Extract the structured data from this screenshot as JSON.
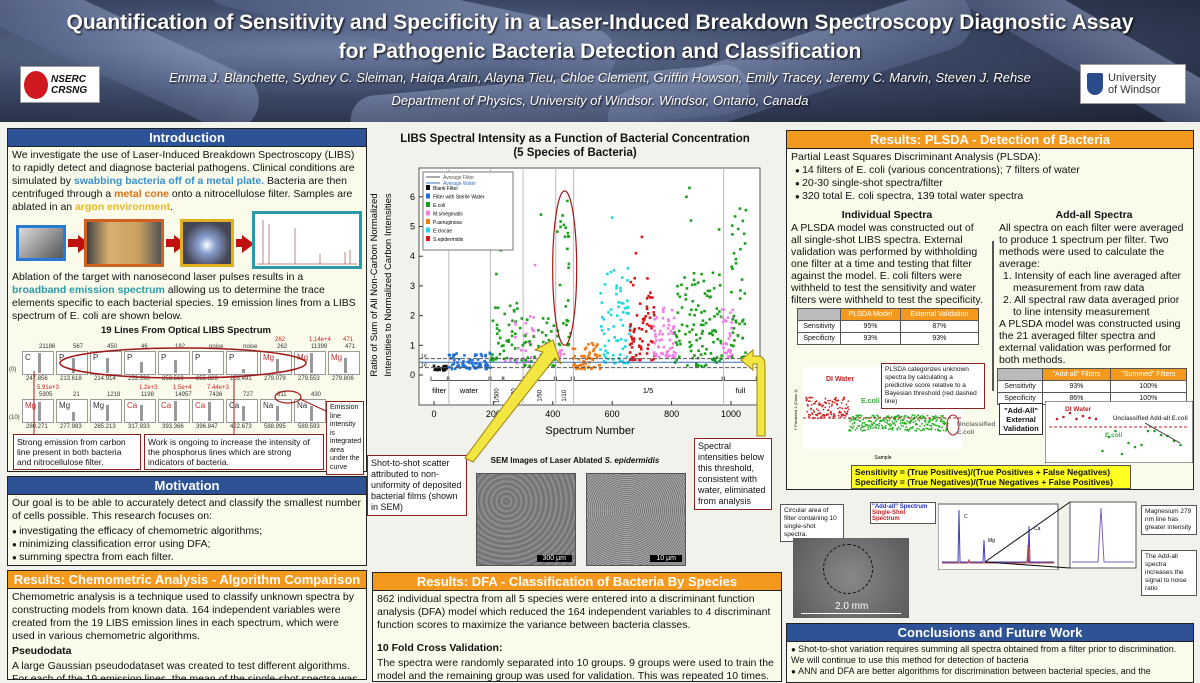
{
  "header": {
    "title": "Quantification of Sensitivity and Specificity in a Laser-Induced Breakdown Spectroscopy Diagnostic Assay for Pathogenic Bacteria Detection and Classification",
    "authors": "Emma J. Blanchette, Sydney C. Sleiman, Haiqa Arain, Alayna Tieu, Chloe Clement, Griffin Howson, Emily Tracey, Jeremy C. Marvin, Steven J. Rehse",
    "department": "Department of Physics, University of Windsor. Windsor, Ontario, Canada",
    "nserc_logo": [
      "NSERC",
      "CRSNG"
    ],
    "uw_logo": [
      "University",
      "of Windsor"
    ]
  },
  "intro": {
    "heading": "Introduction",
    "p1": [
      "We investigate the use of Laser-Induced Breakdown Spectroscopy (LIBS) to rapidly detect and diagnose bacterial pathogens. Clinical conditions are simulated by ",
      "swabbing bacteria off of a metal plate.",
      " Bacteria are then centrifuged through a ",
      "metal cone",
      " onto a nitrocellulose filter. Samples are ablated in an ",
      "argon environment",
      "."
    ],
    "p2": [
      "Ablation of the target with nanosecond laser pulses results in a ",
      "broadband emission spectrum",
      " allowing us to determine the trace elements specific to each bacterial species. 19 emission lines from a LIBS spectrum of E. coli are shown below."
    ],
    "lines_title": "19 Lines From Optical LIBS Spectrum",
    "lines": [
      {
        "el": "C",
        "wl": "247.856",
        "val": "21186"
      },
      {
        "el": "P",
        "wl": "213.618",
        "val": "567"
      },
      {
        "el": "P",
        "wl": "214.914",
        "val": "450"
      },
      {
        "el": "P",
        "wl": "253.398",
        "val": "46"
      },
      {
        "el": "P",
        "wl": "253.560",
        "val": "182"
      },
      {
        "el": "P",
        "wl": "255.326",
        "val": "noise"
      },
      {
        "el": "P",
        "wl": "255.491",
        "val": "noise"
      },
      {
        "el": "Mg",
        "wl": "279.079",
        "val": "262",
        "red": "262"
      },
      {
        "el": "Mg",
        "wl": "279.553",
        "val": "11399",
        "red": "1.14e+4"
      },
      {
        "el": "Mg",
        "wl": "279.806",
        "val": "471",
        "red": "471"
      },
      {
        "el": "Mg",
        "wl": "280.271",
        "val": "5905",
        "red": "5.91e+3"
      },
      {
        "el": "Mg",
        "wl": "277.983",
        "val": "21"
      },
      {
        "el": "Mg",
        "wl": "285.213",
        "val": "1218"
      },
      {
        "el": "Ca",
        "wl": "317.933",
        "val": "1198",
        "red": "1.2e+3"
      },
      {
        "el": "Ca",
        "wl": "393.366",
        "val": "14957",
        "red": "1.5e+4"
      },
      {
        "el": "Ca",
        "wl": "396.847",
        "val": "7436",
        "red": "7.44e+3"
      },
      {
        "el": "Ca",
        "wl": "422.673",
        "val": "727"
      },
      {
        "el": "Na",
        "wl": "588.995",
        "val": "611"
      },
      {
        "el": "Na",
        "wl": "589.593",
        "val": "430"
      }
    ],
    "row_labels": [
      "(0)",
      "(10)"
    ],
    "callout_carbon": "Strong emission from carbon line present in both bacteria and nitrocellulose filter.",
    "callout_phos": "Work is ongoing to increase the intensity of the phosphorus lines which are strong indicators of bacteria.",
    "callout_emission": "Emission line intensity is integrated area under the curve"
  },
  "motivation": {
    "heading": "Motivation",
    "text": "Our goal is to be able to accurately detect and classify the smallest number of cells possible. This research focuses on:",
    "bullets": [
      "investigating the efficacy of chemometric algorithms;",
      "minimizing classification error using DFA;",
      "summing spectra from each filter."
    ]
  },
  "chemometric": {
    "heading": "Results: Chemometric Analysis - Algorithm Comparison",
    "text": "Chemometric analysis is a technique used to classify unknown spectra by constructing models from known data. 164 independent variables were created from the 19 LIBS emission lines in each spectrum, which were used in various chemometric algorithms.",
    "sub": "Pseudodata",
    "text2": "A large Gaussian pseudodataset was created to test different algorithms. For each of the 19 emission lines, the mean of the single-shot spectra was"
  },
  "center": {
    "callout_scatter": "Shot-to-shot scatter attributed to non-uniformity of deposited bacterial films (shown in SEM)",
    "callout_threshold": "Spectral intensities below this threshold, consistent with water, eliminated from analysis",
    "sem_title": "SEM Images of Laser Ablated ",
    "sem_species": "S. epidermidis",
    "sem_scales": [
      "300 µm",
      "10 µm"
    ]
  },
  "chart_data": {
    "type": "scatter",
    "title": "LIBS Spectral Intensity as a Function of Bacterial Concentration",
    "subtitle": "(5 Species of Bacteria)",
    "xlabel": "Spectrum Number",
    "ylabel": [
      "Ratio of Sum of All Non-Carbon Normalized",
      "Intensities to Normalized Carbon Intensities"
    ],
    "xlim": [
      -40,
      1090
    ],
    "ylim": [
      -1,
      7
    ],
    "xticks": [
      0,
      200,
      400,
      600,
      800,
      1000
    ],
    "yticks": [
      0,
      1,
      2,
      3,
      4,
      5,
      6
    ],
    "legend_lines": [
      {
        "name": "Average Filter",
        "color": "#555555"
      },
      {
        "name": "Average Water",
        "color": "#3a70c0"
      }
    ],
    "legend": [
      {
        "name": "Blank Filter",
        "color": "#111111"
      },
      {
        "name": "Filter with Sterile Water",
        "color": "#1f6fd6"
      },
      {
        "name": "E.coli",
        "color": "#1aa01a"
      },
      {
        "name": "M.smegmatis",
        "color": "#f080e8"
      },
      {
        "name": "P.aeruginosa",
        "color": "#f07a10"
      },
      {
        "name": "E.clocae",
        "color": "#20d8e0"
      },
      {
        "name": "S.epidermidis",
        "color": "#d81818"
      }
    ],
    "clusters": [
      {
        "s": 1,
        "x": [
          0,
          45
        ],
        "y": [
          0.15,
          0.33
        ],
        "n": 22
      },
      {
        "s": 2,
        "x": [
          50,
          190
        ],
        "y": [
          0.2,
          0.75
        ],
        "n": 70
      },
      {
        "s": 3,
        "x": [
          190,
          300
        ],
        "y": [
          0.5,
          2.5
        ],
        "n": 45
      },
      {
        "s": 4,
        "x": [
          240,
          340
        ],
        "y": [
          0.4,
          2.0
        ],
        "n": 30
      },
      {
        "s": 3,
        "x": [
          300,
          410
        ],
        "y": [
          0.3,
          2.0
        ],
        "n": 45
      },
      {
        "s": 3,
        "x": [
          415,
          460
        ],
        "y": [
          1.0,
          6.1
        ],
        "n": 30
      },
      {
        "s": 4,
        "x": [
          405,
          440
        ],
        "y": [
          0.5,
          1.0
        ],
        "n": 10
      },
      {
        "s": 5,
        "x": [
          465,
          560
        ],
        "y": [
          0.2,
          1.1
        ],
        "n": 60
      },
      {
        "s": 6,
        "x": [
          560,
          660
        ],
        "y": [
          0.4,
          3.6
        ],
        "n": 70
      },
      {
        "s": 7,
        "x": [
          660,
          745
        ],
        "y": [
          0.5,
          3.4
        ],
        "n": 70
      },
      {
        "s": 4,
        "x": [
          740,
          815
        ],
        "y": [
          0.6,
          2.3
        ],
        "n": 60
      },
      {
        "s": 3,
        "x": [
          810,
          970
        ],
        "y": [
          0.3,
          3.5
        ],
        "n": 110
      },
      {
        "s": 4,
        "x": [
          970,
          1010
        ],
        "y": [
          0.6,
          2.3
        ],
        "n": 30
      },
      {
        "s": 3,
        "x": [
          1000,
          1050
        ],
        "y": [
          0.6,
          5.6
        ],
        "n": 40
      }
    ],
    "outliers": [
      {
        "s": 3,
        "x": 225,
        "y": 4.2
      },
      {
        "s": 3,
        "x": 210,
        "y": 3.4
      },
      {
        "s": 3,
        "x": 360,
        "y": 5.4
      },
      {
        "s": 4,
        "x": 340,
        "y": 3.7
      },
      {
        "s": 6,
        "x": 600,
        "y": 5.3
      },
      {
        "s": 7,
        "x": 700,
        "y": 4.65
      },
      {
        "s": 7,
        "x": 680,
        "y": 4.1
      },
      {
        "s": 3,
        "x": 860,
        "y": 6.3
      },
      {
        "s": 3,
        "x": 850,
        "y": 6.0
      },
      {
        "s": 3,
        "x": 865,
        "y": 5.2
      },
      {
        "s": 3,
        "x": 960,
        "y": 4.9
      },
      {
        "s": 3,
        "x": 1030,
        "y": 5.6
      }
    ],
    "thresholds": [
      {
        "label": "1σ",
        "y": 0.55,
        "style": "dashed"
      },
      {
        "label": "",
        "y": 0.43,
        "style": "solid"
      },
      {
        "label": "1σ",
        "y": 0.25,
        "style": "dashed"
      }
    ],
    "separators": [
      50,
      190,
      300,
      410,
      470,
      975
    ],
    "segments": [
      {
        "label": "filter",
        "x": [
          -10,
          45
        ]
      },
      {
        "label": "water",
        "x": [
          50,
          185
        ]
      },
      {
        "label": "1/500",
        "x": [
          192,
          230
        ]
      },
      {
        "label": "1/100",
        "x": [
          235,
          300
        ]
      },
      {
        "label": "1/50",
        "x": [
          305,
          405
        ]
      },
      {
        "label": "1/10",
        "x": [
          412,
          462
        ]
      },
      {
        "label": "1/5",
        "x": [
          472,
          970
        ]
      },
      {
        "label": "full",
        "x": [
          978,
          1085
        ]
      }
    ],
    "highlight": {
      "x": 440,
      "y": [
        1.0,
        6.2
      ]
    }
  },
  "plsda": {
    "heading": "Results: PLSDA - Detection of Bacteria",
    "intro": "Partial Least Squares Discriminant Analysis (PLSDA):",
    "bullets": [
      "14 filters of E. coli (various concentrations); 7 filters of water",
      "20-30 single-shot spectra/filter",
      "320 total E. coli spectra, 139 total water spectra"
    ],
    "ind_title": "Individual Spectra",
    "ind_text": "A PLSDA model was constructed out of all single-shot LIBS spectra. External validation was performed by withholding one filter at a time and testing that filter against the model. E. coli filters were withheld to test the sensitivity and water filters were withheld to test the specificity.",
    "ind_table": {
      "cols": [
        "PLSDA Model",
        "External Validation"
      ],
      "rows": [
        [
          "Sensitivity",
          "95%",
          "87%"
        ],
        [
          "Specificity",
          "93%",
          "93%"
        ]
      ]
    },
    "add_title": "Add-all Spectra",
    "add_text": "All spectra on each filter were averaged to produce 1 spectrum per filter. Two methods were used to calculate the average:",
    "add_list": [
      "1. Intensity of each line averaged after measurement from raw data",
      "2. All spectral raw data averaged prior to line intensity measurement"
    ],
    "add_text2": "A PLSDA model was constructed using the 21 averaged filter spectra and external validation was performed for both methods.",
    "add_table": {
      "cols": [
        "\"Add-all\" Filters",
        "\"Summed\" Filters"
      ],
      "rows": [
        [
          "Sensitivity",
          "93%",
          "100%"
        ],
        [
          "Specificity",
          "86%",
          "100%"
        ]
      ]
    },
    "callout": "PLSDA categorizes unknown spectra by calculating a predictive score relative to a Bayesian threshold (red dashed line)",
    "plot_labels": {
      "water": "DI Water",
      "ecoli": "E.coli",
      "unclassified": "Unclassified E.coli",
      "xlabel": "Sample",
      "ylabel": "Y Predicted 1 (Class 1)"
    },
    "addall_label": "\"Add-All\" External Validation",
    "addall_plot": {
      "water": "DI Water",
      "ecoli": "E.coli",
      "unclassified": "Unclassified Add-all E.coli"
    },
    "formula": [
      "Sensitivity = (True Positives)/(True Positives + False Negatives)",
      "Specificity = (True Negatives)/(True Negatives + False Positives)"
    ]
  },
  "spectrum_fig": {
    "callout_circle": "Circular area of filter containing 10 single-shot spectra.",
    "scale": "2.0 mm",
    "legend": [
      "\"Add-all\" Spectrum",
      "Single-Shot Spectrum"
    ],
    "peaks": [
      "C",
      "Mg",
      "Ca"
    ],
    "callout_mg": "Magnesium 279 nm line has greater intensity",
    "callout_snr": "The Add-all spectra increases the signal to noise ratio"
  },
  "dfa": {
    "heading": "Results: DFA - Classification of Bacteria By Species",
    "text": "862 individual spectra from all 5 species were entered into a discriminant function analysis (DFA) model which reduced the 164 independent variables to 4 discriminant function scores to maximize the variance between bacteria classes.",
    "sub": "10 Fold Cross Validation:",
    "text2": "The spectra were randomly separated into 10 groups. 9 groups were used to train the model and the remaining group was used for validation. This was repeated 10 times."
  },
  "conclusions": {
    "heading": "Conclusions and Future Work",
    "bullets": [
      "Shot-to-shot variation requires summing all spectra obtained from a filter prior to discrimination. We will continue to use this method for detection of bacteria",
      "ANN and DFA are better algorithms for discrimination between bacterial species, and the"
    ]
  },
  "colors": {
    "blue_header": "#2d5295",
    "orange_header": "#f39a1e",
    "highlight_yellow": "#ffff20"
  }
}
